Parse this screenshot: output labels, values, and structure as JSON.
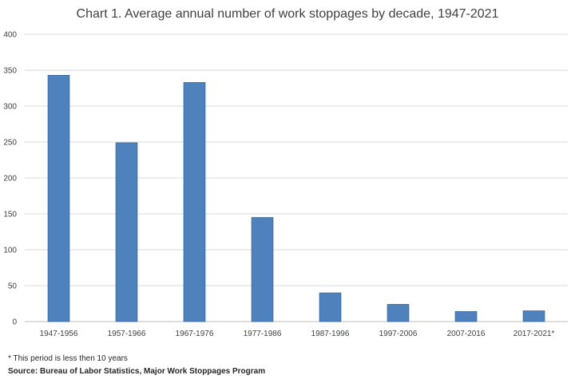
{
  "chart_data": {
    "type": "bar",
    "title": "Chart 1. Average annual number of work stoppages by decade, 1947-2021",
    "xlabel": "",
    "ylabel": "",
    "categories": [
      "1947-1956",
      "1957-1966",
      "1967-1976",
      "1977-1986",
      "1987-1996",
      "1997-2006",
      "2007-2016",
      "2017-2021*"
    ],
    "values": [
      343,
      249,
      333,
      145,
      40,
      24,
      14,
      15
    ],
    "ylim": [
      0,
      400
    ],
    "yticks": [
      0,
      50,
      100,
      150,
      200,
      250,
      300,
      350,
      400
    ],
    "grid": true,
    "legend": "none",
    "bar_color": "#4f81bd"
  },
  "footnote": "* This period is less then 10 years",
  "source": "Source: Bureau of Labor Statistics, Major Work Stoppages Program"
}
